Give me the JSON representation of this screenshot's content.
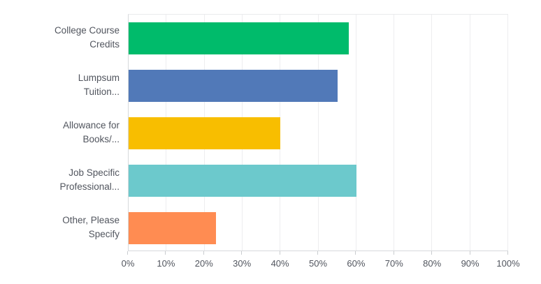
{
  "chart_data": {
    "type": "bar",
    "orientation": "horizontal",
    "title": "",
    "xlabel": "",
    "ylabel": "",
    "xlim": [
      0,
      100
    ],
    "grid": true,
    "legend": false,
    "categories": [
      "College Course Credits",
      "Lumpsum Tuition...",
      "Allowance for Books/...",
      "Job Specific Professional...",
      "Other, Please Specify"
    ],
    "category_lines": [
      [
        "College Course",
        "Credits"
      ],
      [
        "Lumpsum",
        "Tuition..."
      ],
      [
        "Allowance for",
        "Books/..."
      ],
      [
        "Job Specific",
        "Professional..."
      ],
      [
        "Other, Please",
        "Specify"
      ]
    ],
    "values": [
      58,
      55,
      40,
      60,
      23
    ],
    "value_unit": "%",
    "bar_colors": [
      "#00bb6b",
      "#5179b8",
      "#f8be00",
      "#6cc9cc",
      "#ff8c52"
    ],
    "x_tick_labels": [
      "0%",
      "10%",
      "20%",
      "30%",
      "40%",
      "50%",
      "60%",
      "70%",
      "80%",
      "90%",
      "100%"
    ]
  },
  "style": {
    "gridline_color": "#ededef",
    "axis_line_color": "#d7d9dc",
    "tick_color": "#c9cccf",
    "label_text_color": "#51555e",
    "tick_label_color": "#51555e",
    "background_color": "#ffffff"
  }
}
